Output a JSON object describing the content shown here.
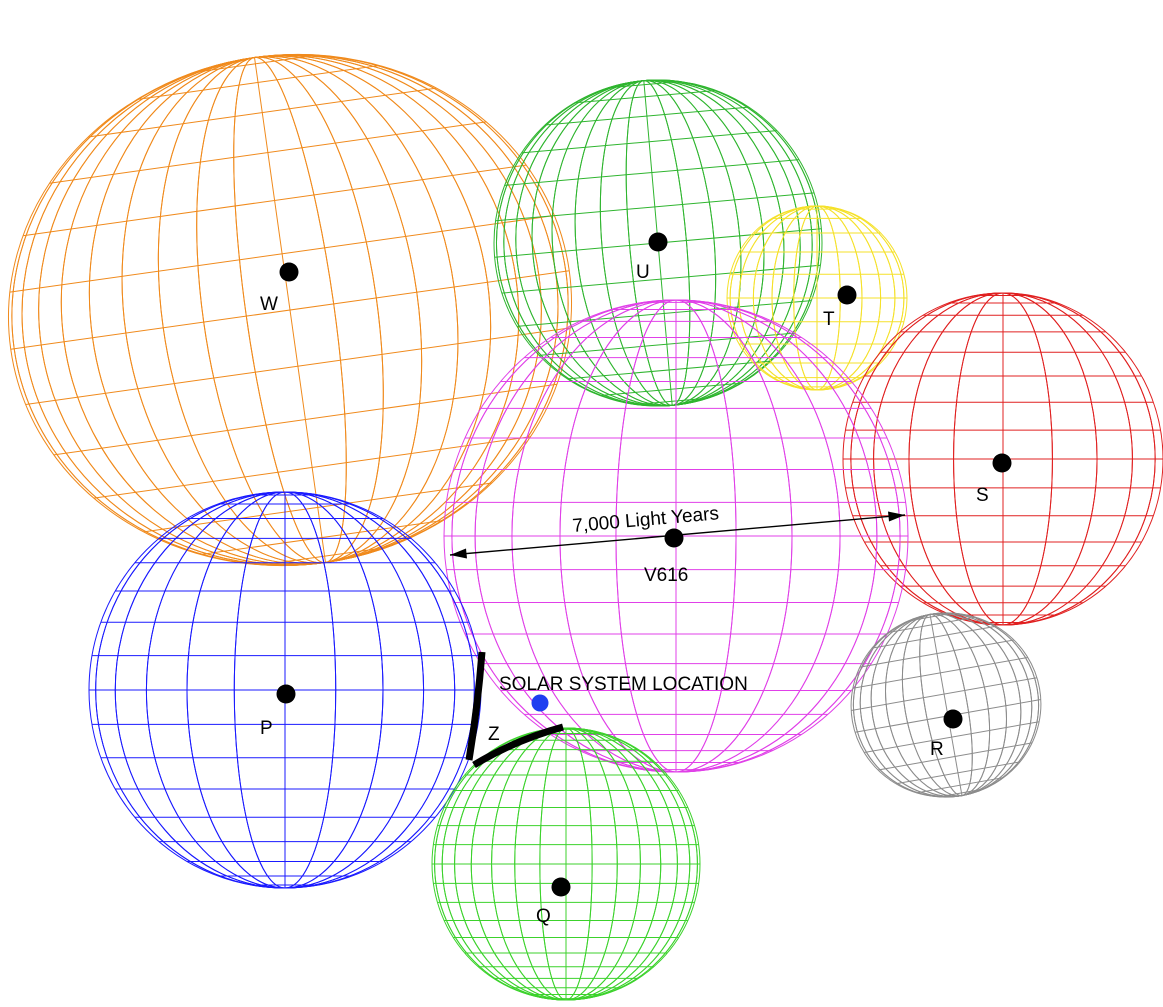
{
  "spheres": [
    {
      "id": "W",
      "label": "W",
      "color": "#f08a1c"
    },
    {
      "id": "U",
      "label": "U",
      "color": "#2fb52f"
    },
    {
      "id": "T",
      "label": "T",
      "color": "#f5e12a"
    },
    {
      "id": "S",
      "label": "S",
      "color": "#e02020"
    },
    {
      "id": "V616",
      "label": "V616",
      "color": "#e040e8"
    },
    {
      "id": "R",
      "label": "R",
      "color": "#8c8c8c"
    },
    {
      "id": "P",
      "label": "P",
      "color": "#1a1aff"
    },
    {
      "id": "Q",
      "label": "Q",
      "color": "#3cd22c"
    }
  ],
  "measurement": {
    "label": "7,000 Light Years"
  },
  "solar_system": {
    "label": "SOLAR SYSTEM LOCATION",
    "color": "#1f3ff0"
  },
  "zone": {
    "label": "Z"
  }
}
